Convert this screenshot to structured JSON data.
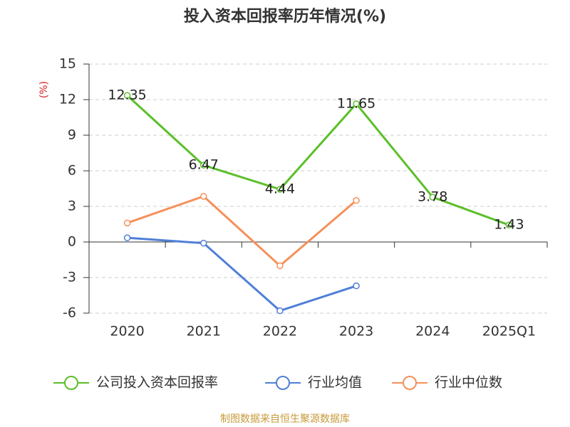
{
  "chart_data": {
    "type": "line",
    "title": "投入资本回报率历年情况(%)",
    "y_label": "(%)",
    "categories": [
      "2020",
      "2021",
      "2022",
      "2023",
      "2024",
      "2025Q1"
    ],
    "series": [
      {
        "name": "公司投入资本回报率",
        "color": "#5cbf2a",
        "values": [
          12.35,
          6.47,
          4.44,
          11.65,
          3.78,
          1.43
        ],
        "show_labels": true
      },
      {
        "name": "行业均值",
        "color": "#4f7fd8",
        "values": [
          0.35,
          -0.1,
          -5.8,
          -3.7,
          null,
          null
        ]
      },
      {
        "name": "行业中位数",
        "color": "#f5905a",
        "values": [
          1.6,
          3.85,
          -2.0,
          3.5,
          null,
          null
        ]
      }
    ],
    "ylim": [
      -6,
      15
    ],
    "yticks": [
      -6,
      -3,
      0,
      3,
      6,
      9,
      12,
      15
    ],
    "grid": true,
    "source": "制图数据来自恒生聚源数据库"
  }
}
